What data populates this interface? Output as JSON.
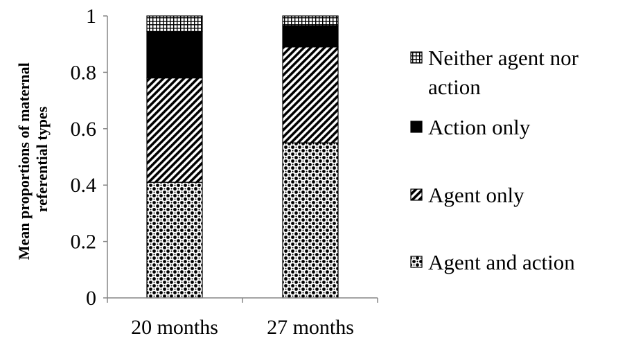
{
  "chart_data": {
    "type": "bar",
    "stacked": true,
    "title": "",
    "xlabel": "",
    "ylabel_lines": [
      "Mean proportions of maternal",
      "referential types"
    ],
    "ylim": [
      0,
      1
    ],
    "y_ticks": [
      "0",
      "0.2",
      "0.4",
      "0.6",
      "0.8",
      "1"
    ],
    "y_tick_values": [
      0,
      0.2,
      0.4,
      0.6,
      0.8,
      1
    ],
    "categories": [
      "20 months",
      "27 months"
    ],
    "grid": false,
    "legend_position": "right",
    "series": [
      {
        "name": "Agent and action",
        "values": [
          0.41,
          0.55
        ],
        "pattern": "dots"
      },
      {
        "name": "Agent only",
        "values": [
          0.37,
          0.34
        ],
        "pattern": "diagonal"
      },
      {
        "name": "Action only",
        "values": [
          0.165,
          0.075
        ],
        "pattern": "solid"
      },
      {
        "name": "Neither agent nor action",
        "values": [
          0.055,
          0.035
        ],
        "pattern": "grid"
      }
    ],
    "legend_items": [
      {
        "series_index": 3,
        "lines": [
          "Neither agent nor",
          "action"
        ]
      },
      {
        "series_index": 2,
        "lines": [
          "Action only"
        ]
      },
      {
        "series_index": 1,
        "lines": [
          "Agent only"
        ]
      },
      {
        "series_index": 0,
        "lines": [
          "Agent and action"
        ]
      }
    ],
    "colors": {
      "ink": "#000000",
      "background": "#ffffff",
      "axis": "#868686"
    }
  }
}
